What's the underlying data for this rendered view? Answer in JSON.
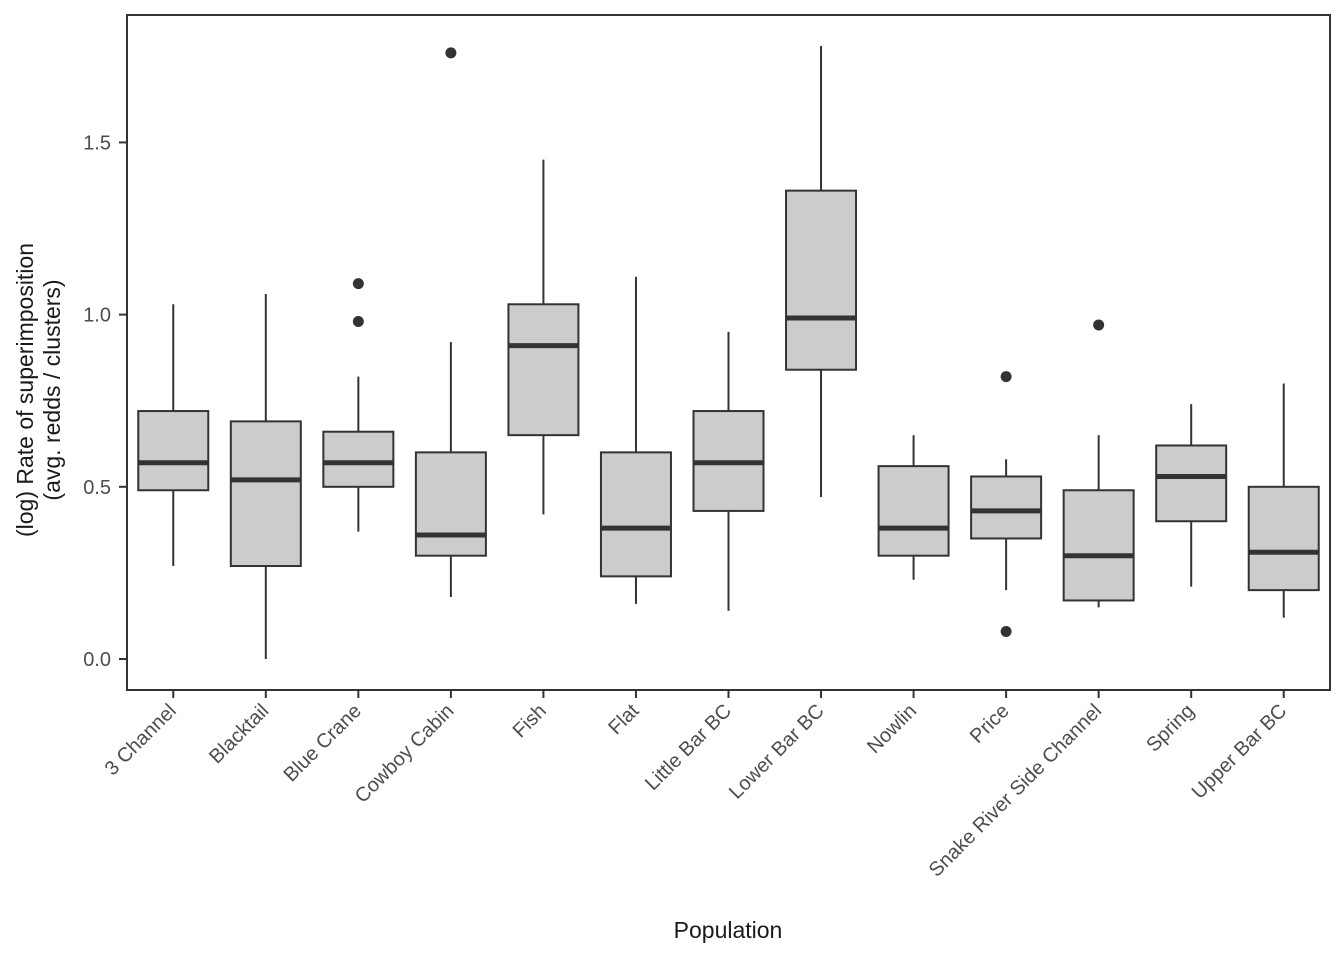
{
  "chart_data": {
    "type": "boxplot",
    "title": "",
    "xlabel": "Population",
    "ylabel_line1": "(log) Rate of superimposition",
    "ylabel_line2": "(avg. redds / clusters)",
    "ytick_labels": [
      "0.0",
      "0.5",
      "1.0",
      "1.5"
    ],
    "yticks": [
      0.0,
      0.5,
      1.0,
      1.5
    ],
    "ylim": [
      -0.09,
      1.87
    ],
    "grid": false,
    "legend": "none",
    "box_fill": "#cccccc",
    "box_stroke": "#333333",
    "outlier_color": "#333333",
    "tick_label_color": "#4d4d4d",
    "axis_title_color": "#1a1a1a",
    "categories": [
      "3 Channel",
      "Blacktail",
      "Blue Crane",
      "Cowboy Cabin",
      "Fish",
      "Flat",
      "Little Bar BC",
      "Lower Bar BC",
      "Nowlin",
      "Price",
      "Snake River Side Channel",
      "Spring",
      "Upper Bar BC"
    ],
    "boxes": [
      {
        "population": "3 Channel",
        "whisker_low": 0.27,
        "q1": 0.49,
        "median": 0.57,
        "q3": 0.72,
        "whisker_high": 1.03,
        "outliers": []
      },
      {
        "population": "Blacktail",
        "whisker_low": 0.0,
        "q1": 0.27,
        "median": 0.52,
        "q3": 0.69,
        "whisker_high": 1.06,
        "outliers": []
      },
      {
        "population": "Blue Crane",
        "whisker_low": 0.37,
        "q1": 0.5,
        "median": 0.57,
        "q3": 0.66,
        "whisker_high": 0.82,
        "outliers": [
          0.98,
          1.09
        ]
      },
      {
        "population": "Cowboy Cabin",
        "whisker_low": 0.18,
        "q1": 0.3,
        "median": 0.36,
        "q3": 0.6,
        "whisker_high": 0.92,
        "outliers": [
          1.76
        ]
      },
      {
        "population": "Fish",
        "whisker_low": 0.42,
        "q1": 0.65,
        "median": 0.91,
        "q3": 1.03,
        "whisker_high": 1.45,
        "outliers": []
      },
      {
        "population": "Flat",
        "whisker_low": 0.16,
        "q1": 0.24,
        "median": 0.38,
        "q3": 0.6,
        "whisker_high": 1.11,
        "outliers": []
      },
      {
        "population": "Little Bar BC",
        "whisker_low": 0.14,
        "q1": 0.43,
        "median": 0.57,
        "q3": 0.72,
        "whisker_high": 0.95,
        "outliers": []
      },
      {
        "population": "Lower Bar BC",
        "whisker_low": 0.47,
        "q1": 0.84,
        "median": 0.99,
        "q3": 1.36,
        "whisker_high": 1.78,
        "outliers": []
      },
      {
        "population": "Nowlin",
        "whisker_low": 0.23,
        "q1": 0.3,
        "median": 0.38,
        "q3": 0.56,
        "whisker_high": 0.65,
        "outliers": []
      },
      {
        "population": "Price",
        "whisker_low": 0.2,
        "q1": 0.35,
        "median": 0.43,
        "q3": 0.53,
        "whisker_high": 0.58,
        "outliers": [
          0.82,
          0.08
        ]
      },
      {
        "population": "Snake River Side Channel",
        "whisker_low": 0.15,
        "q1": 0.17,
        "median": 0.3,
        "q3": 0.49,
        "whisker_high": 0.65,
        "outliers": [
          0.97
        ]
      },
      {
        "population": "Spring",
        "whisker_low": 0.21,
        "q1": 0.4,
        "median": 0.53,
        "q3": 0.62,
        "whisker_high": 0.74,
        "outliers": []
      },
      {
        "population": "Upper Bar BC",
        "whisker_low": 0.12,
        "q1": 0.2,
        "median": 0.31,
        "q3": 0.5,
        "whisker_high": 0.8,
        "outliers": []
      }
    ]
  }
}
